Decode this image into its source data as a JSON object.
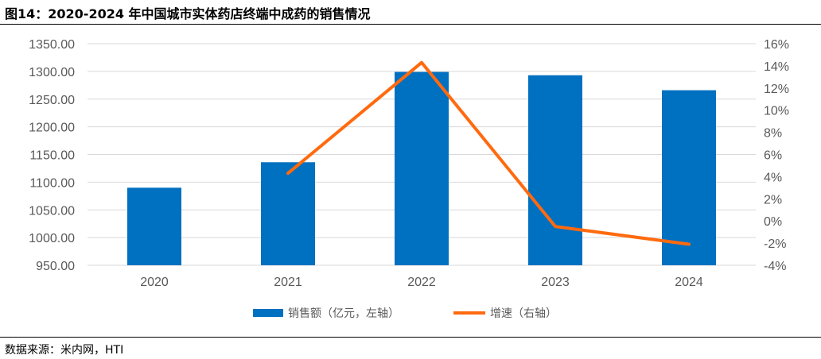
{
  "figure": {
    "title": "图14：2020-2024 年中国城市实体药店终端中成药的销售情况",
    "source": "数据来源：米内网，HTI"
  },
  "chart_data": {
    "type": "bar",
    "categories": [
      "2020",
      "2021",
      "2022",
      "2023",
      "2024"
    ],
    "series": [
      {
        "name": "销售额（亿元，左轴）",
        "type": "bar",
        "axis": "left",
        "color": "#0070C0",
        "values": [
          1090,
          1136,
          1299,
          1293,
          1266
        ]
      },
      {
        "name": "增速（右轴）",
        "type": "line",
        "axis": "right",
        "color": "#FF6A0F",
        "values": [
          null,
          4.3,
          14.3,
          -0.5,
          -2.1
        ]
      }
    ],
    "y_left": {
      "min": 950,
      "max": 1350,
      "step": 50,
      "ticks": [
        "950.00",
        "1000.00",
        "1050.00",
        "1100.00",
        "1150.00",
        "1200.00",
        "1250.00",
        "1300.00",
        "1350.00"
      ]
    },
    "y_right": {
      "min": -4,
      "max": 16,
      "step": 2,
      "ticks": [
        "-4%",
        "-2%",
        "0%",
        "2%",
        "4%",
        "6%",
        "8%",
        "10%",
        "12%",
        "14%",
        "16%"
      ]
    },
    "grid": true,
    "legend_position": "bottom"
  }
}
